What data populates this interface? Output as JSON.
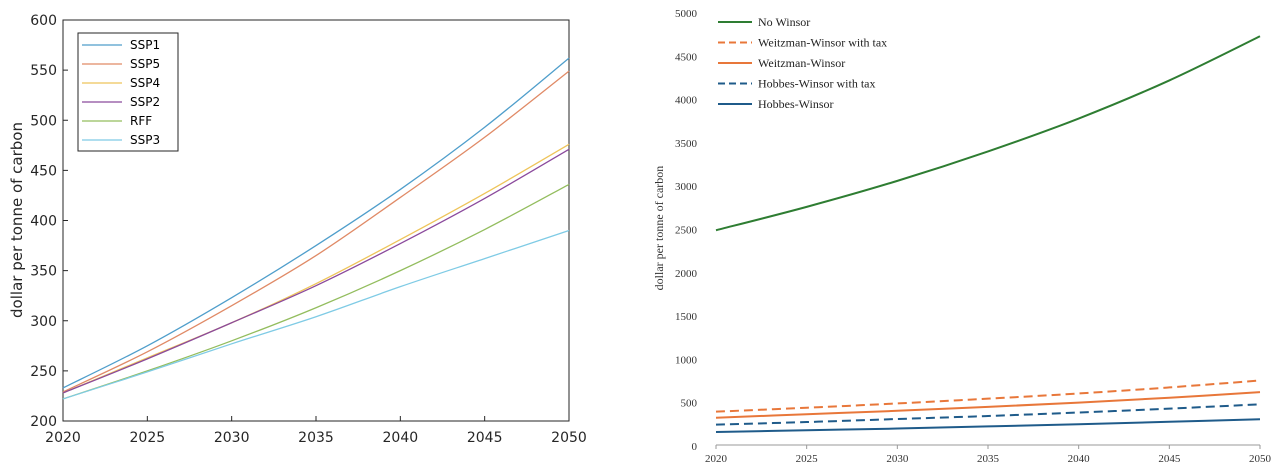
{
  "chart_data": [
    {
      "type": "line",
      "title": "",
      "xlabel": "",
      "ylabel": "dollar per tonne of carbon",
      "xlim": [
        2020,
        2050
      ],
      "ylim": [
        200,
        600
      ],
      "xticks": [
        2020,
        2025,
        2030,
        2035,
        2040,
        2045,
        2050
      ],
      "yticks": [
        200,
        250,
        300,
        350,
        400,
        450,
        500,
        550,
        600
      ],
      "grid": false,
      "legend_position": "top-left",
      "x": [
        2020,
        2025,
        2030,
        2035,
        2040,
        2045,
        2050
      ],
      "series": [
        {
          "name": "SSP1",
          "color": "#4f9ecb",
          "style": "solid",
          "values": [
            233,
            275,
            323,
            375,
            431,
            493,
            562
          ]
        },
        {
          "name": "SSP5",
          "color": "#e08a66",
          "style": "solid",
          "values": [
            229,
            269,
            315,
            365,
            423,
            483,
            549
          ]
        },
        {
          "name": "SSP4",
          "color": "#eec45a",
          "style": "solid",
          "values": [
            228,
            263,
            298,
            337,
            381,
            427,
            476
          ]
        },
        {
          "name": "SSP2",
          "color": "#8b4a9c",
          "style": "solid",
          "values": [
            228,
            262,
            298,
            335,
            377,
            422,
            471
          ]
        },
        {
          "name": "RFF",
          "color": "#93bd5e",
          "style": "solid",
          "values": [
            222,
            250,
            280,
            313,
            350,
            391,
            436
          ]
        },
        {
          "name": "SSP3",
          "color": "#7fcbe5",
          "style": "solid",
          "values": [
            222,
            249,
            277,
            304,
            334,
            362,
            390
          ]
        }
      ]
    },
    {
      "type": "line",
      "title": "",
      "xlabel": "",
      "ylabel": "dollar per tonne of carbon",
      "xlim": [
        2020,
        2050
      ],
      "ylim": [
        0,
        5000
      ],
      "xticks": [
        2020,
        2025,
        2030,
        2035,
        2040,
        2045,
        2050
      ],
      "yticks": [
        0,
        500,
        1000,
        1500,
        2000,
        2500,
        3000,
        3500,
        4000,
        4500,
        5000
      ],
      "grid": false,
      "legend_position": "top-left",
      "x": [
        2020,
        2025,
        2030,
        2035,
        2040,
        2045,
        2050
      ],
      "series": [
        {
          "name": "No Winsor",
          "color": "#2e7d32",
          "style": "solid",
          "values": [
            2480,
            2750,
            3050,
            3390,
            3770,
            4210,
            4720
          ]
        },
        {
          "name": "Weitzman-Winsor with tax",
          "color": "#e8773a",
          "style": "dashed",
          "values": [
            385,
            430,
            480,
            535,
            595,
            665,
            745
          ]
        },
        {
          "name": "Weitzman-Winsor",
          "color": "#e8773a",
          "style": "solid",
          "values": [
            315,
            355,
            395,
            440,
            490,
            545,
            610
          ]
        },
        {
          "name": "Hobbes-Winsor with tax",
          "color": "#1f5b8a",
          "style": "dashed",
          "values": [
            235,
            265,
            300,
            335,
            375,
            420,
            470
          ]
        },
        {
          "name": "Hobbes-Winsor",
          "color": "#1f5b8a",
          "style": "solid",
          "values": [
            150,
            170,
            190,
            215,
            240,
            268,
            298
          ]
        }
      ]
    }
  ]
}
